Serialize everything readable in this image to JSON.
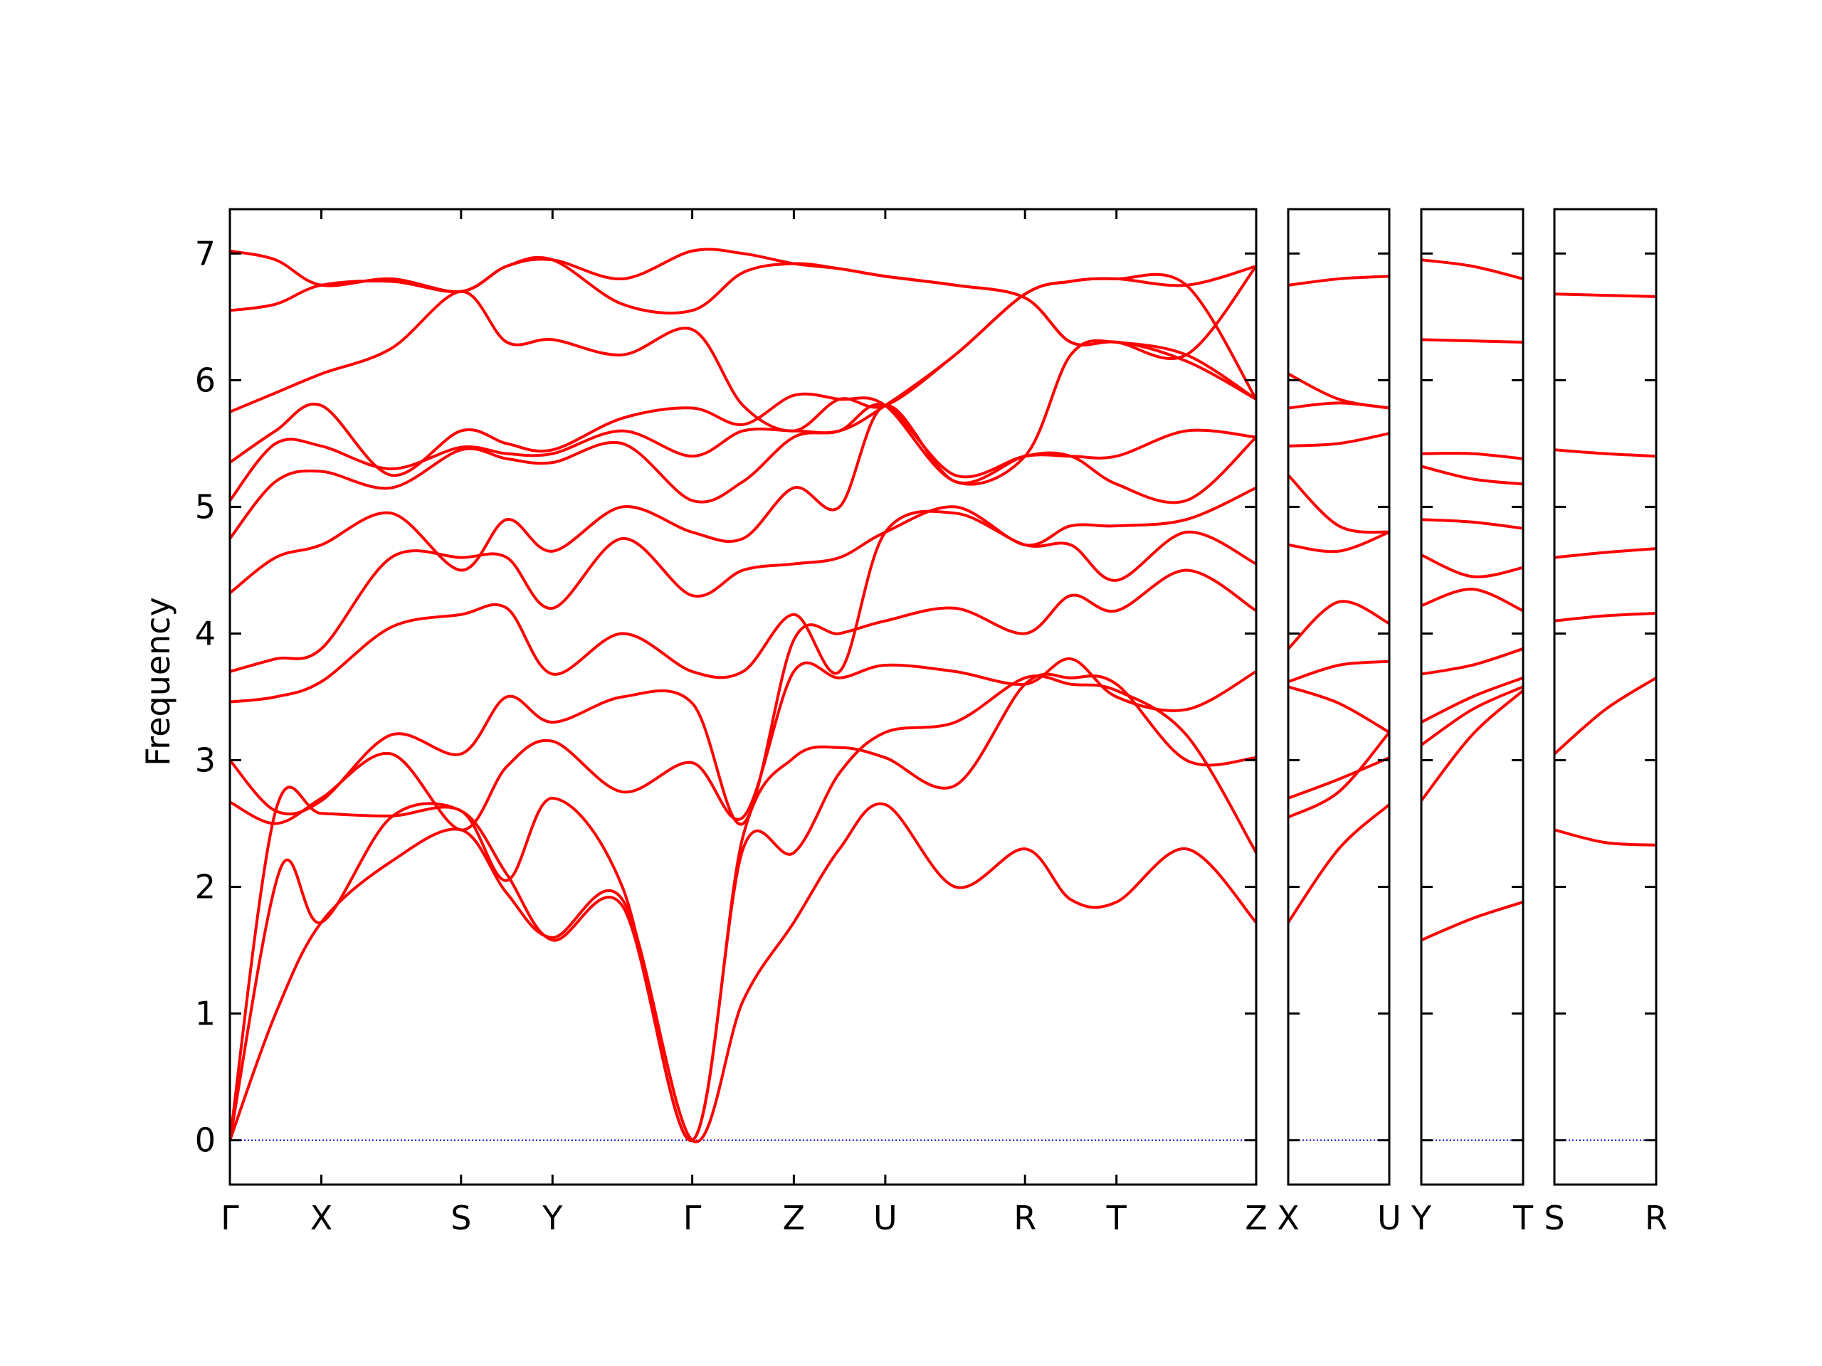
{
  "chart_data": {
    "type": "line",
    "ylabel": "Frequency",
    "ylim": [
      -0.35,
      7.35
    ],
    "yticks": [
      0,
      1,
      2,
      3,
      4,
      5,
      6,
      7
    ],
    "colors": {
      "bands": "#ff0000",
      "zero_line": "#0000cc",
      "axes": "#000000"
    },
    "panels": [
      {
        "kpoints": [
          {
            "label": "Γ",
            "x": 0.0
          },
          {
            "label": "X",
            "x": 0.72
          },
          {
            "label": "S",
            "x": 1.82
          },
          {
            "label": "Y",
            "x": 2.54
          },
          {
            "label": "Γ",
            "x": 3.64
          },
          {
            "label": "Z",
            "x": 4.44
          },
          {
            "label": "U",
            "x": 5.16
          },
          {
            "label": "R",
            "x": 6.26
          },
          {
            "label": "T",
            "x": 6.98
          },
          {
            "label": "Z",
            "x": 8.08
          }
        ],
        "series": [
          {
            "x": [
              0.0,
              0.36,
              0.72,
              1.27,
              1.82,
              2.18,
              2.54,
              3.09,
              3.64,
              4.04,
              4.44,
              4.8,
              5.16,
              5.71,
              6.26,
              6.62,
              6.98,
              7.53,
              8.08
            ],
            "values": [
              0.0,
              1.0,
              1.72,
              2.2,
              2.45,
              1.95,
              1.6,
              1.9,
              0.0,
              1.1,
              1.72,
              2.3,
              2.65,
              2.0,
              2.3,
              1.9,
              1.88,
              2.3,
              1.72
            ]
          },
          {
            "x": [
              0.0,
              0.4,
              0.72,
              1.27,
              1.82,
              2.18,
              2.54,
              3.09,
              3.64,
              4.04,
              4.44,
              4.8,
              5.16,
              5.71,
              6.26,
              6.62,
              6.98,
              7.53,
              8.08
            ],
            "values": [
              0.0,
              2.15,
              1.72,
              2.55,
              2.6,
              2.1,
              1.58,
              1.85,
              0.0,
              2.3,
              2.27,
              2.9,
              3.22,
              3.3,
              3.65,
              3.6,
              3.55,
              3.2,
              2.27
            ]
          },
          {
            "x": [
              0.0,
              0.36,
              0.72,
              1.27,
              1.82,
              2.18,
              2.54,
              3.09,
              3.64,
              4.04,
              4.44,
              4.8,
              5.16,
              5.71,
              6.26,
              6.62,
              6.98,
              7.53,
              8.08
            ],
            "values": [
              0.0,
              2.6,
              2.58,
              2.56,
              2.6,
              2.05,
              2.7,
              2.0,
              0.0,
              2.4,
              3.02,
              3.1,
              3.02,
              2.8,
              3.6,
              3.65,
              3.6,
              3.0,
              3.02
            ]
          },
          {
            "x": [
              0.0,
              0.36,
              0.72,
              1.27,
              1.82,
              2.18,
              2.54,
              3.09,
              3.64,
              4.04,
              4.44,
              4.8,
              5.16,
              5.71,
              6.26,
              6.62,
              6.98,
              7.53,
              8.08
            ],
            "values": [
              2.67,
              2.5,
              2.7,
              3.05,
              2.45,
              2.95,
              3.15,
              2.75,
              2.98,
              2.55,
              3.7,
              3.65,
              3.75,
              3.7,
              3.6,
              3.8,
              3.5,
              3.4,
              3.7
            ]
          },
          {
            "x": [
              0.0,
              0.36,
              0.72,
              1.27,
              1.82,
              2.18,
              2.54,
              3.09,
              3.64,
              4.04,
              4.44,
              4.8,
              5.16,
              5.71,
              6.26,
              6.62,
              6.98,
              7.53,
              8.08
            ],
            "values": [
              3.0,
              2.6,
              2.68,
              3.2,
              3.05,
              3.5,
              3.3,
              3.5,
              3.45,
              2.5,
              3.95,
              4.0,
              4.1,
              4.2,
              4.0,
              4.3,
              4.18,
              4.5,
              4.18
            ]
          },
          {
            "x": [
              0.0,
              0.36,
              0.72,
              1.27,
              1.82,
              2.18,
              2.54,
              3.09,
              3.64,
              4.04,
              4.44,
              4.8,
              5.16,
              5.71,
              6.26,
              6.62,
              6.98,
              7.53,
              8.08
            ],
            "values": [
              3.46,
              3.5,
              3.62,
              4.05,
              4.15,
              4.2,
              3.68,
              4.0,
              3.7,
              3.7,
              4.15,
              3.7,
              4.8,
              4.95,
              4.7,
              4.7,
              4.42,
              4.8,
              4.55
            ]
          },
          {
            "x": [
              0.0,
              0.36,
              0.72,
              1.27,
              1.82,
              2.18,
              2.54,
              3.09,
              3.64,
              4.04,
              4.44,
              4.8,
              5.16,
              5.71,
              6.26,
              6.62,
              6.98,
              7.53,
              8.08
            ],
            "values": [
              3.7,
              3.8,
              3.88,
              4.6,
              4.6,
              4.6,
              4.2,
              4.75,
              4.3,
              4.5,
              4.55,
              4.6,
              4.8,
              5.0,
              4.7,
              4.85,
              4.85,
              4.9,
              5.15
            ]
          },
          {
            "x": [
              0.0,
              0.36,
              0.72,
              1.27,
              1.82,
              2.18,
              2.54,
              3.09,
              3.64,
              4.04,
              4.44,
              4.8,
              5.16,
              5.71,
              6.26,
              6.62,
              6.98,
              7.53,
              8.08
            ],
            "values": [
              4.32,
              4.6,
              4.7,
              4.95,
              4.5,
              4.9,
              4.65,
              5.0,
              4.8,
              4.75,
              5.15,
              5.0,
              5.8,
              5.2,
              5.4,
              5.4,
              5.18,
              5.05,
              5.55
            ]
          },
          {
            "x": [
              0.0,
              0.36,
              0.72,
              1.27,
              1.82,
              2.18,
              2.54,
              3.09,
              3.64,
              4.04,
              4.44,
              4.8,
              5.16,
              5.71,
              6.26,
              6.62,
              6.98,
              7.53,
              8.08
            ],
            "values": [
              4.75,
              5.2,
              5.28,
              5.15,
              5.45,
              5.38,
              5.35,
              5.5,
              5.05,
              5.2,
              5.55,
              5.6,
              5.8,
              5.25,
              5.4,
              5.4,
              5.4,
              5.6,
              5.55
            ]
          },
          {
            "x": [
              0.0,
              0.36,
              0.72,
              1.27,
              1.82,
              2.18,
              2.54,
              3.09,
              3.64,
              4.04,
              4.44,
              4.8,
              5.16,
              5.71,
              6.26,
              6.62,
              6.98,
              7.53,
              8.08
            ],
            "values": [
              5.05,
              5.5,
              5.48,
              5.3,
              5.47,
              5.42,
              5.42,
              5.6,
              5.4,
              5.6,
              5.6,
              5.6,
              5.8,
              6.2,
              6.68,
              6.78,
              6.8,
              6.75,
              5.85
            ]
          },
          {
            "x": [
              0.0,
              0.36,
              0.72,
              1.27,
              1.82,
              2.18,
              2.54,
              3.09,
              3.64,
              4.04,
              4.44,
              4.8,
              5.16,
              5.71,
              6.26,
              6.62,
              6.98,
              7.53,
              8.08
            ],
            "values": [
              5.35,
              5.6,
              5.8,
              5.25,
              5.6,
              5.5,
              5.45,
              5.7,
              5.78,
              5.65,
              5.88,
              5.85,
              5.8,
              5.2,
              5.4,
              6.2,
              6.3,
              6.15,
              5.85
            ]
          },
          {
            "x": [
              0.0,
              0.36,
              0.72,
              1.27,
              1.82,
              2.18,
              2.54,
              3.09,
              3.64,
              4.04,
              4.44,
              4.8,
              5.16,
              5.71,
              6.26,
              6.62,
              6.98,
              7.53,
              8.08
            ],
            "values": [
              5.75,
              5.9,
              6.05,
              6.25,
              6.7,
              6.3,
              6.32,
              6.2,
              6.4,
              5.8,
              5.6,
              5.85,
              5.8,
              6.2,
              6.68,
              6.78,
              6.8,
              6.75,
              6.9
            ]
          },
          {
            "x": [
              0.0,
              0.36,
              0.72,
              1.27,
              1.82,
              2.18,
              2.54,
              3.09,
              3.64,
              4.04,
              4.44,
              4.8,
              5.16,
              5.71,
              6.26,
              6.62,
              6.98,
              7.53,
              8.08
            ],
            "values": [
              6.55,
              6.6,
              6.75,
              6.78,
              6.7,
              6.9,
              6.95,
              6.6,
              6.55,
              6.85,
              6.92,
              6.88,
              6.82,
              6.75,
              6.65,
              6.3,
              6.3,
              6.2,
              5.85
            ]
          },
          {
            "x": [
              0.0,
              0.36,
              0.72,
              1.27,
              1.82,
              2.18,
              2.54,
              3.09,
              3.64,
              4.04,
              4.44,
              4.8,
              5.16,
              5.71,
              6.26,
              6.62,
              6.98,
              7.53,
              8.08
            ],
            "values": [
              7.02,
              6.95,
              6.75,
              6.8,
              6.7,
              6.9,
              6.95,
              6.8,
              7.02,
              7.0,
              6.92,
              6.88,
              6.82,
              6.75,
              6.65,
              6.3,
              6.3,
              6.2,
              6.9
            ]
          }
        ]
      },
      {
        "kpoints": [
          {
            "label": "X",
            "x": 0.0
          },
          {
            "label": "U",
            "x": 0.8
          }
        ],
        "series": [
          {
            "x": [
              0.0,
              0.4,
              0.8
            ],
            "values": [
              1.72,
              2.3,
              2.65
            ]
          },
          {
            "x": [
              0.0,
              0.4,
              0.8
            ],
            "values": [
              2.55,
              2.75,
              3.22
            ]
          },
          {
            "x": [
              0.0,
              0.4,
              0.8
            ],
            "values": [
              2.7,
              2.85,
              3.02
            ]
          },
          {
            "x": [
              0.0,
              0.4,
              0.8
            ],
            "values": [
              3.58,
              3.45,
              3.22
            ]
          },
          {
            "x": [
              0.0,
              0.4,
              0.8
            ],
            "values": [
              3.62,
              3.75,
              3.78
            ]
          },
          {
            "x": [
              0.0,
              0.4,
              0.8
            ],
            "values": [
              3.88,
              4.25,
              4.08
            ]
          },
          {
            "x": [
              0.0,
              0.4,
              0.8
            ],
            "values": [
              4.7,
              4.65,
              4.8
            ]
          },
          {
            "x": [
              0.0,
              0.4,
              0.8
            ],
            "values": [
              5.25,
              4.85,
              4.8
            ]
          },
          {
            "x": [
              0.0,
              0.4,
              0.8
            ],
            "values": [
              5.48,
              5.5,
              5.58
            ]
          },
          {
            "x": [
              0.0,
              0.4,
              0.8
            ],
            "values": [
              5.78,
              5.82,
              5.78
            ]
          },
          {
            "x": [
              0.0,
              0.4,
              0.8
            ],
            "values": [
              6.05,
              5.85,
              5.78
            ]
          },
          {
            "x": [
              0.0,
              0.4,
              0.8
            ],
            "values": [
              6.75,
              6.8,
              6.82
            ]
          }
        ]
      },
      {
        "kpoints": [
          {
            "label": "Y",
            "x": 0.0
          },
          {
            "label": "T",
            "x": 0.8
          }
        ],
        "series": [
          {
            "x": [
              0.0,
              0.4,
              0.8
            ],
            "values": [
              1.58,
              1.75,
              1.88
            ]
          },
          {
            "x": [
              0.0,
              0.4,
              0.8
            ],
            "values": [
              2.68,
              3.2,
              3.55
            ]
          },
          {
            "x": [
              0.0,
              0.4,
              0.8
            ],
            "values": [
              3.12,
              3.4,
              3.58
            ]
          },
          {
            "x": [
              0.0,
              0.4,
              0.8
            ],
            "values": [
              3.3,
              3.5,
              3.65
            ]
          },
          {
            "x": [
              0.0,
              0.4,
              0.8
            ],
            "values": [
              3.68,
              3.75,
              3.88
            ]
          },
          {
            "x": [
              0.0,
              0.4,
              0.8
            ],
            "values": [
              4.22,
              4.35,
              4.18
            ]
          },
          {
            "x": [
              0.0,
              0.4,
              0.8
            ],
            "values": [
              4.62,
              4.45,
              4.52
            ]
          },
          {
            "x": [
              0.0,
              0.4,
              0.8
            ],
            "values": [
              4.9,
              4.88,
              4.83
            ]
          },
          {
            "x": [
              0.0,
              0.4,
              0.8
            ],
            "values": [
              5.32,
              5.22,
              5.18
            ]
          },
          {
            "x": [
              0.0,
              0.4,
              0.8
            ],
            "values": [
              5.42,
              5.42,
              5.38
            ]
          },
          {
            "x": [
              0.0,
              0.4,
              0.8
            ],
            "values": [
              6.32,
              6.31,
              6.3
            ]
          },
          {
            "x": [
              0.0,
              0.4,
              0.8
            ],
            "values": [
              6.95,
              6.9,
              6.8
            ]
          }
        ]
      },
      {
        "kpoints": [
          {
            "label": "S",
            "x": 0.0
          },
          {
            "label": "R",
            "x": 0.8
          }
        ],
        "series": [
          {
            "x": [
              0.0,
              0.4,
              0.8
            ],
            "values": [
              2.45,
              2.35,
              2.33
            ]
          },
          {
            "x": [
              0.0,
              0.4,
              0.8
            ],
            "values": [
              3.05,
              3.4,
              3.65
            ]
          },
          {
            "x": [
              0.0,
              0.4,
              0.8
            ],
            "values": [
              4.1,
              4.14,
              4.16
            ]
          },
          {
            "x": [
              0.0,
              0.4,
              0.8
            ],
            "values": [
              4.6,
              4.64,
              4.67
            ]
          },
          {
            "x": [
              0.0,
              0.4,
              0.8
            ],
            "values": [
              5.45,
              5.42,
              5.4
            ]
          },
          {
            "x": [
              0.0,
              0.4,
              0.8
            ],
            "values": [
              6.68,
              6.67,
              6.66
            ]
          }
        ]
      }
    ]
  }
}
